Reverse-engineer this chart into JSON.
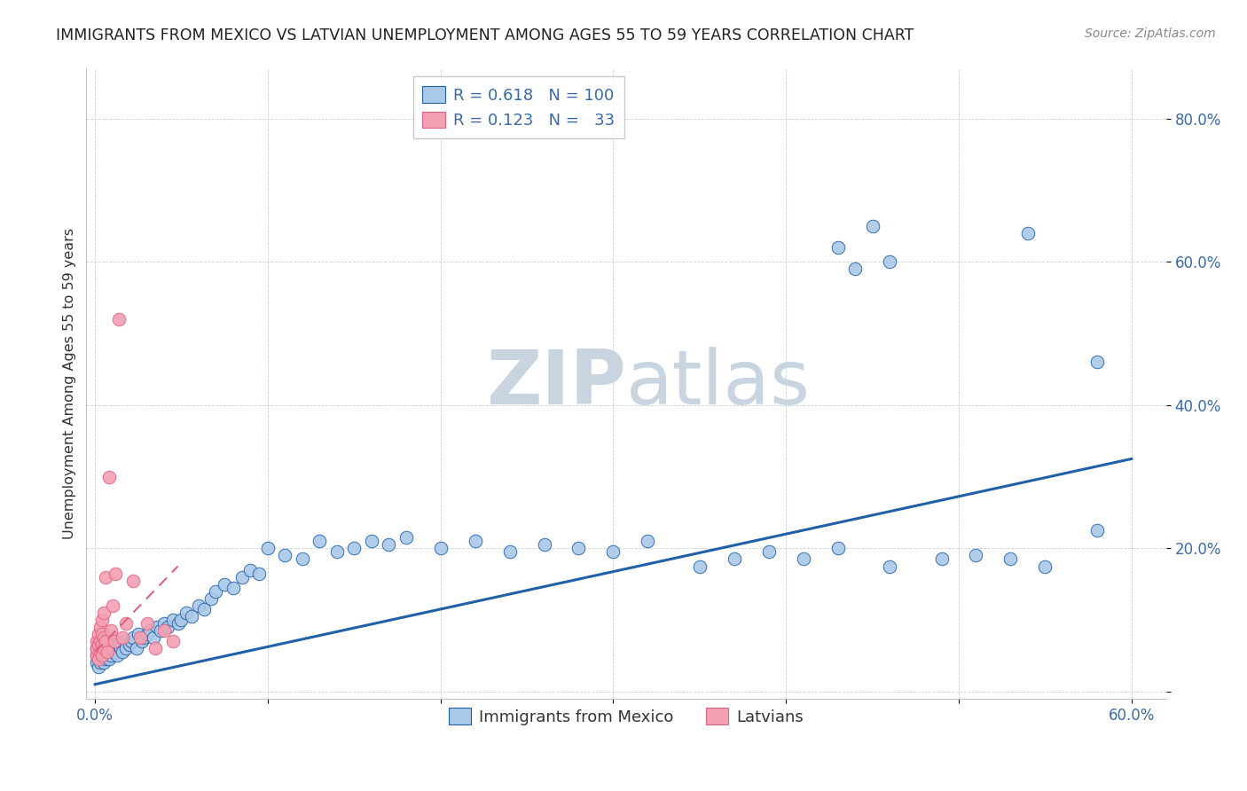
{
  "title": "IMMIGRANTS FROM MEXICO VS LATVIAN UNEMPLOYMENT AMONG AGES 55 TO 59 YEARS CORRELATION CHART",
  "source": "Source: ZipAtlas.com",
  "ylabel": "Unemployment Among Ages 55 to 59 years",
  "xlim": [
    -0.005,
    0.62
  ],
  "ylim": [
    -0.01,
    0.87
  ],
  "xticks": [
    0.0,
    0.1,
    0.2,
    0.3,
    0.4,
    0.5,
    0.6
  ],
  "yticks": [
    0.0,
    0.2,
    0.4,
    0.6,
    0.8
  ],
  "ytick_labels": [
    "",
    "20.0%",
    "40.0%",
    "60.0%",
    "80.0%"
  ],
  "xtick_labels": [
    "0.0%",
    "",
    "",
    "",
    "",
    "",
    "60.0%"
  ],
  "blue_R": 0.618,
  "blue_N": 100,
  "pink_R": 0.123,
  "pink_N": 33,
  "blue_color": "#aac8e8",
  "pink_color": "#f4a0b4",
  "blue_line_color": "#2060a8",
  "pink_line_color": "#e06080",
  "watermark_zip": "ZIP",
  "watermark_atlas": "atlas",
  "watermark_color": "#d0dce8",
  "background_color": "#ffffff",
  "title_fontsize": 12.5,
  "blue_scatter_x": [
    0.001,
    0.001,
    0.001,
    0.002,
    0.002,
    0.002,
    0.002,
    0.002,
    0.003,
    0.003,
    0.003,
    0.003,
    0.004,
    0.004,
    0.004,
    0.005,
    0.005,
    0.005,
    0.005,
    0.006,
    0.006,
    0.006,
    0.007,
    0.007,
    0.008,
    0.008,
    0.008,
    0.009,
    0.009,
    0.01,
    0.01,
    0.011,
    0.012,
    0.013,
    0.014,
    0.015,
    0.016,
    0.017,
    0.018,
    0.02,
    0.021,
    0.022,
    0.024,
    0.025,
    0.027,
    0.028,
    0.03,
    0.032,
    0.034,
    0.036,
    0.038,
    0.04,
    0.042,
    0.045,
    0.048,
    0.05,
    0.053,
    0.056,
    0.06,
    0.063,
    0.067,
    0.07,
    0.075,
    0.08,
    0.085,
    0.09,
    0.095,
    0.1,
    0.11,
    0.12,
    0.13,
    0.14,
    0.15,
    0.16,
    0.17,
    0.18,
    0.2,
    0.22,
    0.24,
    0.26,
    0.28,
    0.3,
    0.32,
    0.35,
    0.37,
    0.39,
    0.41,
    0.43,
    0.46,
    0.49,
    0.51,
    0.53,
    0.55,
    0.43,
    0.44,
    0.45,
    0.46,
    0.58,
    0.54,
    0.58
  ],
  "blue_scatter_y": [
    0.05,
    0.06,
    0.04,
    0.055,
    0.045,
    0.065,
    0.035,
    0.07,
    0.05,
    0.06,
    0.04,
    0.075,
    0.055,
    0.045,
    0.065,
    0.05,
    0.06,
    0.04,
    0.08,
    0.055,
    0.045,
    0.07,
    0.05,
    0.06,
    0.055,
    0.045,
    0.07,
    0.06,
    0.05,
    0.065,
    0.055,
    0.06,
    0.055,
    0.05,
    0.065,
    0.06,
    0.055,
    0.07,
    0.06,
    0.065,
    0.07,
    0.075,
    0.06,
    0.08,
    0.07,
    0.075,
    0.08,
    0.085,
    0.075,
    0.09,
    0.085,
    0.095,
    0.09,
    0.1,
    0.095,
    0.1,
    0.11,
    0.105,
    0.12,
    0.115,
    0.13,
    0.14,
    0.15,
    0.145,
    0.16,
    0.17,
    0.165,
    0.2,
    0.19,
    0.185,
    0.21,
    0.195,
    0.2,
    0.21,
    0.205,
    0.215,
    0.2,
    0.21,
    0.195,
    0.205,
    0.2,
    0.195,
    0.21,
    0.175,
    0.185,
    0.195,
    0.185,
    0.2,
    0.175,
    0.185,
    0.19,
    0.185,
    0.175,
    0.62,
    0.59,
    0.65,
    0.6,
    0.46,
    0.64,
    0.225
  ],
  "pink_scatter_x": [
    0.001,
    0.001,
    0.001,
    0.002,
    0.002,
    0.002,
    0.003,
    0.003,
    0.003,
    0.004,
    0.004,
    0.004,
    0.004,
    0.005,
    0.005,
    0.005,
    0.006,
    0.006,
    0.007,
    0.008,
    0.009,
    0.01,
    0.011,
    0.012,
    0.014,
    0.016,
    0.018,
    0.022,
    0.026,
    0.03,
    0.035,
    0.04,
    0.045
  ],
  "pink_scatter_y": [
    0.05,
    0.06,
    0.07,
    0.045,
    0.065,
    0.08,
    0.055,
    0.07,
    0.09,
    0.05,
    0.065,
    0.08,
    0.1,
    0.06,
    0.075,
    0.11,
    0.07,
    0.16,
    0.055,
    0.3,
    0.085,
    0.12,
    0.07,
    0.165,
    0.52,
    0.075,
    0.095,
    0.155,
    0.075,
    0.095,
    0.06,
    0.085,
    0.07
  ],
  "blue_line_x": [
    0.0,
    0.6
  ],
  "blue_line_y": [
    0.01,
    0.325
  ],
  "pink_line_x": [
    0.0,
    0.048
  ],
  "pink_line_y": [
    0.055,
    0.175
  ]
}
